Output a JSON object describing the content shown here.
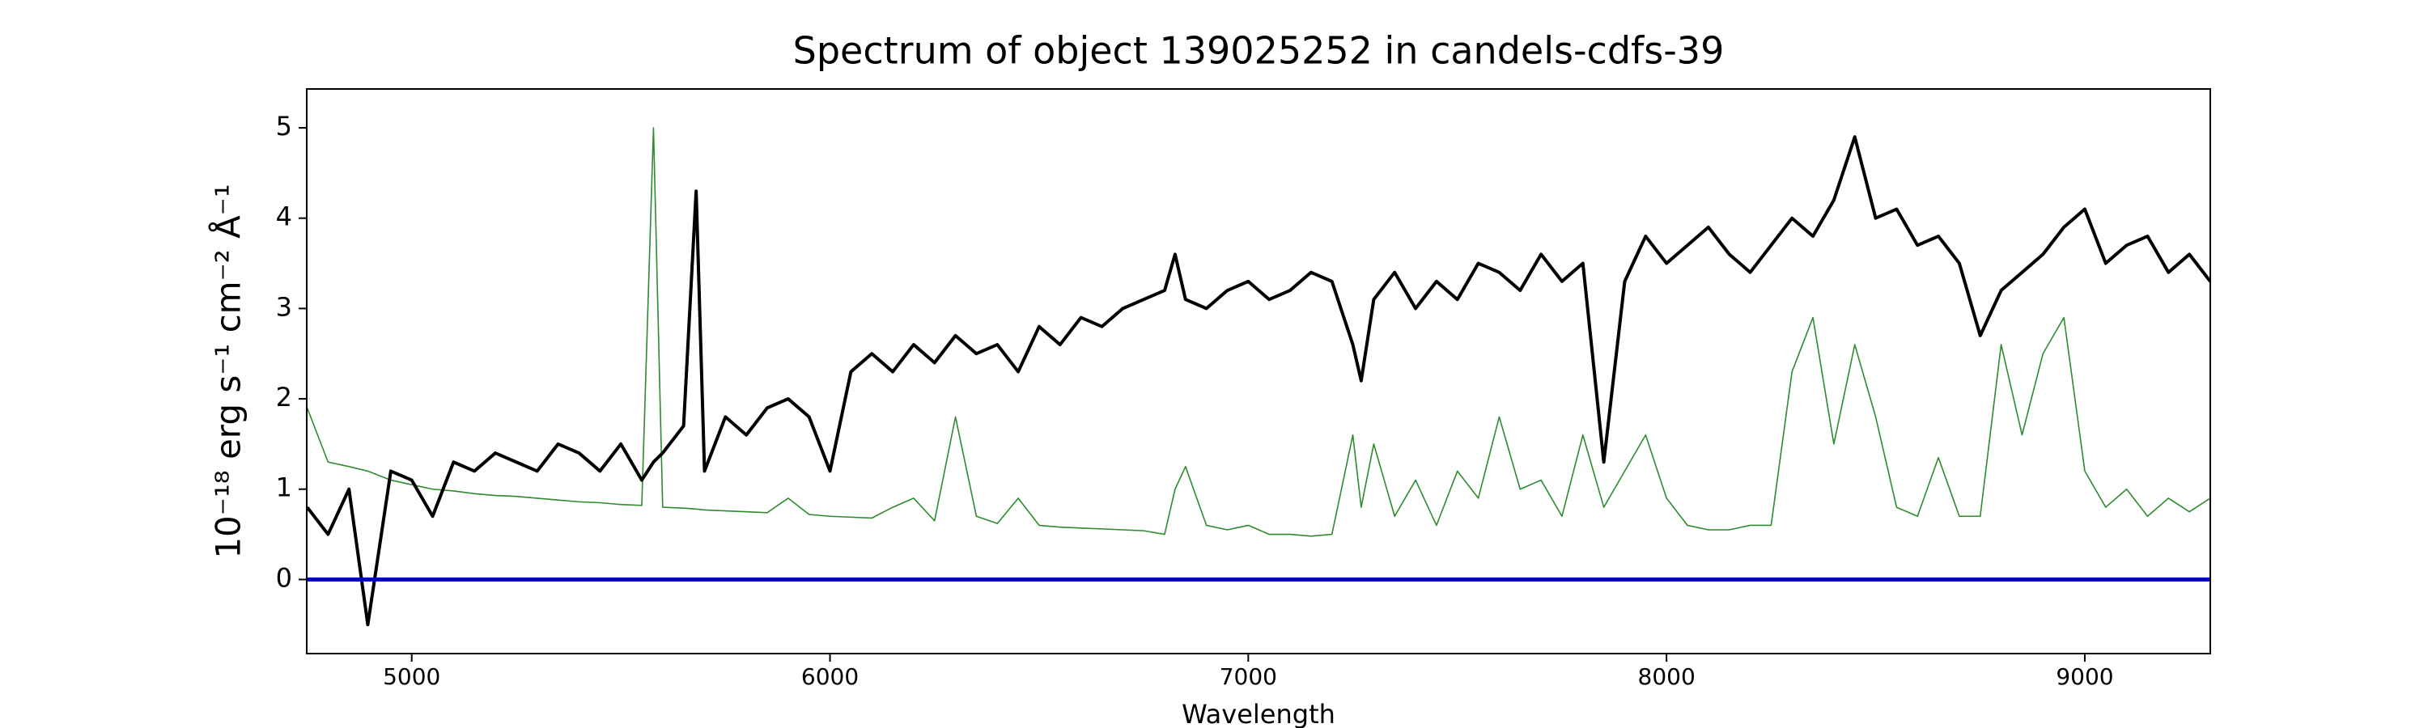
{
  "chart_data": {
    "type": "line",
    "title": "Spectrum of object 139025252 in candels-cdfs-39",
    "xlabel": "Wavelength",
    "ylabel": "10⁻¹⁸ erg s⁻¹ cm⁻² Å⁻¹",
    "xlim": [
      4749,
      9300
    ],
    "ylim": [
      -0.82,
      5.43
    ],
    "xticks": [
      5000,
      6000,
      7000,
      8000,
      9000
    ],
    "yticks": [
      0,
      1,
      2,
      3,
      4,
      5
    ],
    "hlines": [
      {
        "y": 0,
        "color": "#0000cc"
      }
    ],
    "x": [
      4750,
      4800,
      4850,
      4895,
      4950,
      5000,
      5050,
      5100,
      5150,
      5200,
      5250,
      5300,
      5350,
      5400,
      5450,
      5500,
      5550,
      5578,
      5600,
      5650,
      5680,
      5700,
      5750,
      5800,
      5850,
      5900,
      5950,
      6000,
      6050,
      6100,
      6150,
      6200,
      6250,
      6300,
      6350,
      6400,
      6450,
      6500,
      6550,
      6600,
      6650,
      6700,
      6750,
      6800,
      6825,
      6850,
      6900,
      6950,
      7000,
      7050,
      7100,
      7150,
      7200,
      7250,
      7270,
      7300,
      7350,
      7400,
      7450,
      7500,
      7550,
      7600,
      7650,
      7700,
      7750,
      7800,
      7850,
      7900,
      7950,
      8000,
      8050,
      8100,
      8150,
      8200,
      8250,
      8300,
      8350,
      8400,
      8450,
      8500,
      8550,
      8600,
      8650,
      8700,
      8750,
      8800,
      8850,
      8900,
      8950,
      9000,
      9050,
      9100,
      9150,
      9200,
      9250,
      9300
    ],
    "series": [
      {
        "color": "#2e8b2e",
        "width": 1.6,
        "values": [
          1.9,
          1.3,
          1.25,
          1.2,
          1.1,
          1.05,
          1.0,
          0.98,
          0.95,
          0.93,
          0.92,
          0.9,
          0.88,
          0.86,
          0.85,
          0.83,
          0.82,
          5.0,
          0.8,
          0.79,
          0.78,
          0.77,
          0.76,
          0.75,
          0.74,
          0.9,
          0.72,
          0.7,
          0.69,
          0.68,
          0.8,
          0.9,
          0.65,
          1.8,
          0.7,
          0.62,
          0.9,
          0.6,
          0.58,
          0.57,
          0.56,
          0.55,
          0.54,
          0.5,
          1.0,
          1.25,
          0.6,
          0.55,
          0.6,
          0.5,
          0.5,
          0.48,
          0.5,
          1.6,
          0.8,
          1.5,
          0.7,
          1.1,
          0.6,
          1.2,
          0.9,
          1.8,
          1.0,
          1.1,
          0.7,
          1.6,
          0.8,
          1.2,
          1.6,
          0.9,
          0.6,
          0.55,
          0.55,
          0.6,
          0.6,
          2.3,
          2.9,
          1.5,
          2.6,
          1.8,
          0.8,
          0.7,
          1.35,
          0.7,
          0.7,
          2.6,
          1.6,
          2.5,
          2.9,
          1.2,
          0.8,
          1.0,
          0.7,
          0.9,
          0.75,
          0.9
        ]
      },
      {
        "color": "#000000",
        "width": 4,
        "values": [
          0.8,
          0.5,
          1.0,
          -0.5,
          1.2,
          1.1,
          0.7,
          1.3,
          1.2,
          1.4,
          1.3,
          1.2,
          1.5,
          1.4,
          1.2,
          1.5,
          1.1,
          1.3,
          1.4,
          1.7,
          4.3,
          1.2,
          1.8,
          1.6,
          1.9,
          2.0,
          1.8,
          1.2,
          2.3,
          2.5,
          2.3,
          2.6,
          2.4,
          2.7,
          2.5,
          2.6,
          2.3,
          2.8,
          2.6,
          2.9,
          2.8,
          3.0,
          3.1,
          3.2,
          3.6,
          3.1,
          3.0,
          3.2,
          3.3,
          3.1,
          3.2,
          3.4,
          3.3,
          2.6,
          2.2,
          3.1,
          3.4,
          3.0,
          3.3,
          3.1,
          3.5,
          3.4,
          3.2,
          3.6,
          3.3,
          3.5,
          1.3,
          3.3,
          3.8,
          3.5,
          3.7,
          3.9,
          3.6,
          3.4,
          3.7,
          4.0,
          3.8,
          4.2,
          4.9,
          4.0,
          4.1,
          3.7,
          3.8,
          3.5,
          2.7,
          3.2,
          3.4,
          3.6,
          3.9,
          4.1,
          3.5,
          3.7,
          3.8,
          3.4,
          3.6,
          3.3
        ]
      }
    ]
  }
}
